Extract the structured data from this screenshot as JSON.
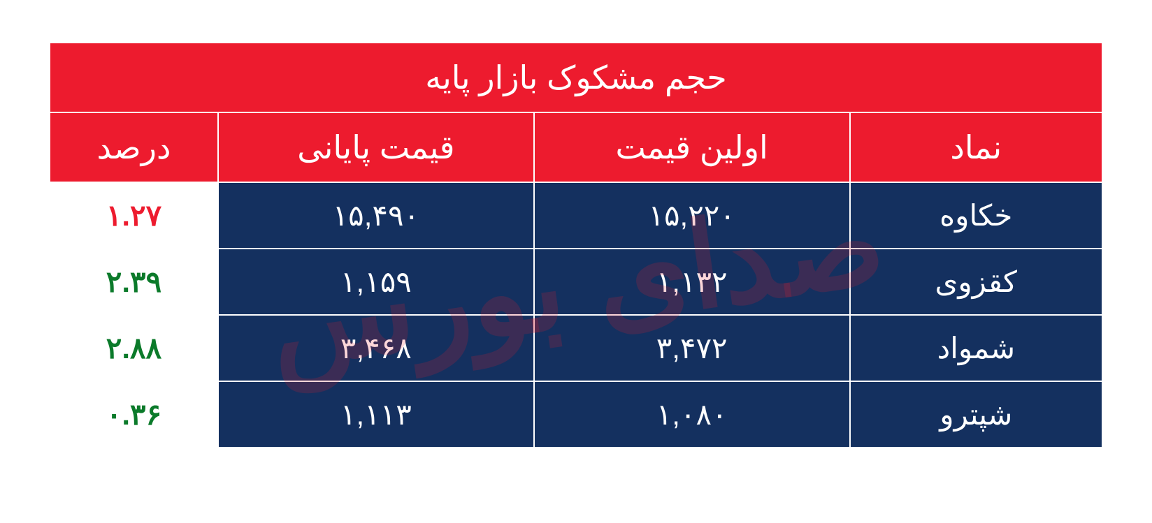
{
  "colors": {
    "header_bg": "#ed1b2e",
    "header_fg": "#ffffff",
    "data_bg": "#14305f",
    "data_fg": "#ffffff",
    "percent_bg": "#ffffff",
    "percent_pos": "#0b7a2a",
    "percent_neg": "#ed1b2e",
    "border": "#ffffff"
  },
  "table": {
    "title": "حجم مشکوک بازار پایه",
    "columns": {
      "symbol": "نماد",
      "first_price": "اولین قیمت",
      "last_price": "قیمت پایانی",
      "percent": "درصد"
    },
    "col_widths_pct": [
      24,
      30,
      30,
      16
    ],
    "rows": [
      {
        "symbol": "خکاوه",
        "first_price": "۱۵,۲۲۰",
        "last_price": "۱۵,۴۹۰",
        "percent": "۱.۲۷",
        "percent_dir": "neg"
      },
      {
        "symbol": "کقزوی",
        "first_price": "۱,۱۳۲",
        "last_price": "۱,۱۵۹",
        "percent": "۲.۳۹",
        "percent_dir": "pos"
      },
      {
        "symbol": "شمواد",
        "first_price": "۳,۴۷۲",
        "last_price": "۳,۴۶۸",
        "percent": "۲.۸۸",
        "percent_dir": "pos"
      },
      {
        "symbol": "شپترو",
        "first_price": "۱,۰۸۰",
        "last_price": "۱,۱۱۳",
        "percent": "۰.۳۶",
        "percent_dir": "pos"
      }
    ]
  },
  "watermark": "صدای بورس"
}
